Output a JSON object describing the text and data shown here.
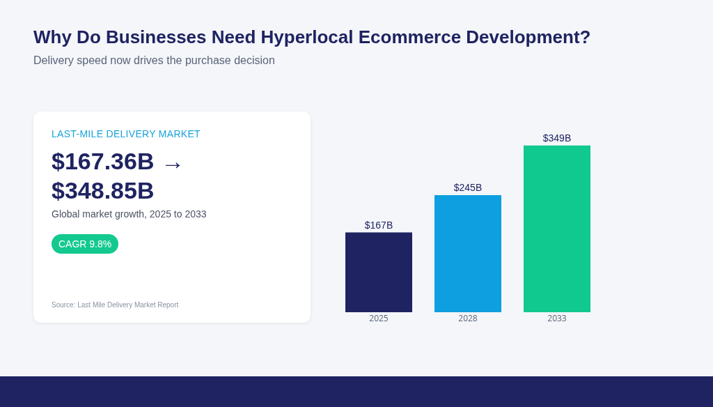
{
  "chart_data": [
    {
      "type": "other",
      "title": "Why Do Businesses Need Hyperlocal Ecommerce Development?",
      "subtitle": "Delivery speed now drives the purchase decision",
      "annotations": [
        "LAST-MILE DELIVERY MARKET",
        "$167.36B → $348.85B",
        "Global market growth, 2025 to 2033",
        "CAGR 9.8%",
        "Source: Last Mile Delivery Market Report"
      ]
    },
    {
      "type": "bar",
      "categories": [
        "2025",
        "2028",
        "2033"
      ],
      "values": [
        167,
        245,
        349
      ],
      "colors": [
        "#1f2361",
        "#0d9fe0",
        "#0fc98e"
      ],
      "value_labels": [
        "$167B",
        "$245B",
        "$349B"
      ]
    }
  ]
}
